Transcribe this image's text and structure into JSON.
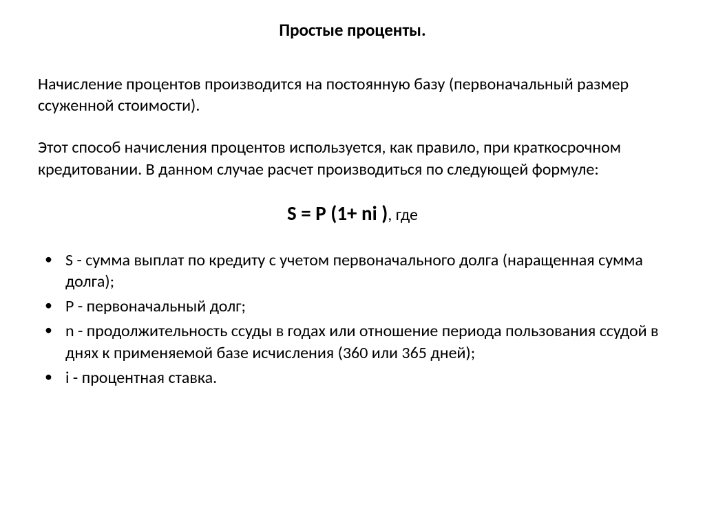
{
  "title": "Простые проценты.",
  "paragraph1": "Начисление процентов производится на постоянную базу (первоначальный размер ссуженной стоимости).",
  "paragraph2": "Этот способ начисления процентов используется, как правило, при краткосрочном кредитовании. В данном случае расчет производиться по следующей формуле:",
  "formula": {
    "main": "S = P (1+ ni )",
    "suffix": ", где"
  },
  "bullets": [
    "S - сумма выплат по кредиту с учетом первоначального долга (наращенная сумма долга);",
    "P - первоначальный долг;",
    "n - продолжительность ссуды в годах или отношение периода пользования ссудой в днях к применяемой базе исчисления (360 или 365 дней);",
    "i - процентная ставка."
  ],
  "styles": {
    "background_color": "#ffffff",
    "text_color": "#000000",
    "title_fontsize": 25,
    "body_fontsize": 24,
    "formula_fontsize": 29,
    "font_family": "Calibri, Arial, sans-serif"
  }
}
